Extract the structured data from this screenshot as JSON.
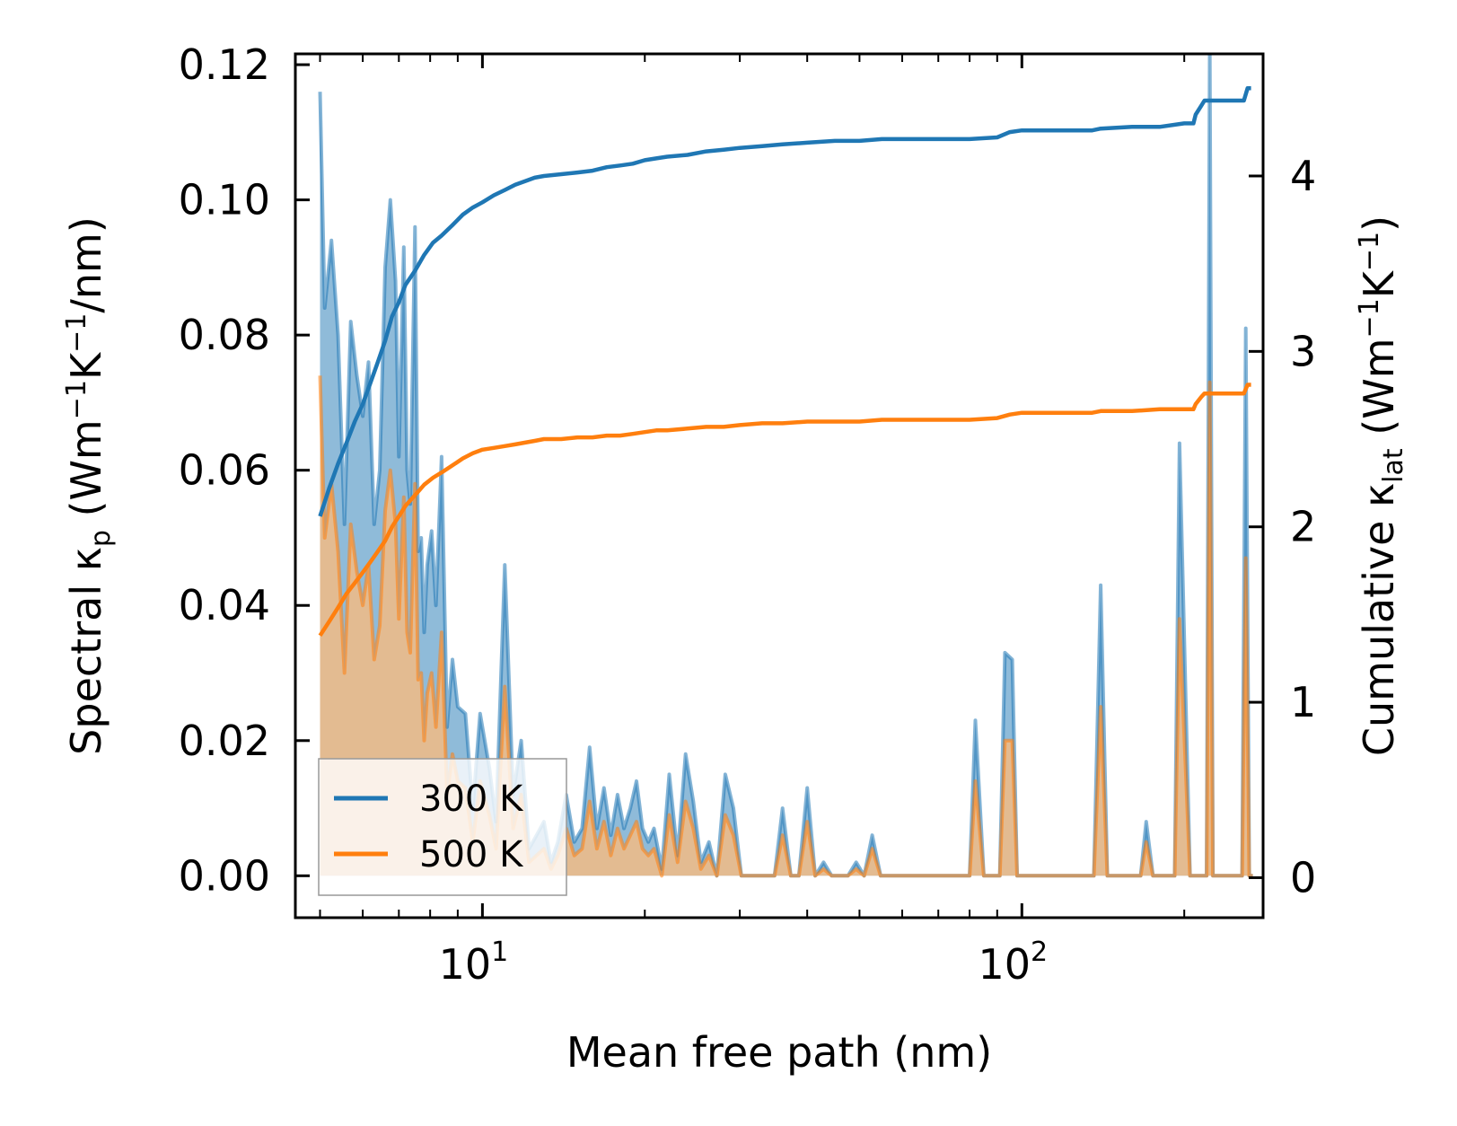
{
  "chart_data": {
    "type": "line",
    "title": "",
    "xlabel": "Mean free path (nm)",
    "ylabel_left": {
      "prefix": "Spectral κ",
      "sub": "p",
      "unit_open": " (Wm",
      "sup1": "−1",
      "unit_mid": "K",
      "sup2": "−1",
      "unit_close": "/nm)"
    },
    "ylabel_right": {
      "prefix": "Cumulative κ",
      "sub": "lat",
      "unit_open": " (Wm",
      "sup1": "−1",
      "unit_mid": "K",
      "sup2": "−1",
      "unit_close": ")"
    },
    "xscale": "log",
    "xlim": [
      4.5,
      280
    ],
    "ylim_left": [
      -0.0062,
      0.1216
    ],
    "ylim_right": [
      -0.228,
      4.696
    ],
    "xticks": [
      {
        "value": 10,
        "base": "10",
        "exp": "1"
      },
      {
        "value": 100,
        "base": "10",
        "exp": "2"
      }
    ],
    "yticks_left": [
      "0.00",
      "0.02",
      "0.04",
      "0.06",
      "0.08",
      "0.10",
      "0.12"
    ],
    "yticks_left_values": [
      0,
      0.02,
      0.04,
      0.06,
      0.08,
      0.1,
      0.12
    ],
    "yticks_right": [
      "0",
      "1",
      "2",
      "3",
      "4"
    ],
    "yticks_right_values": [
      0,
      1,
      2,
      3,
      4
    ],
    "legend": {
      "position": "lower-left",
      "entries": [
        "300 K",
        "500 K"
      ]
    },
    "colors": {
      "s300": "#1f77b4",
      "s500": "#ff7f0e",
      "fill300": "#1f77b4",
      "fill500": "#ffbb78"
    },
    "series": [
      {
        "name": "300 K",
        "spectral": {
          "x": [
            5.0,
            5.1,
            5.25,
            5.4,
            5.55,
            5.7,
            5.85,
            6.0,
            6.15,
            6.3,
            6.45,
            6.6,
            6.75,
            6.9,
            7.0,
            7.15,
            7.25,
            7.35,
            7.5,
            7.6,
            7.7,
            7.8,
            7.9,
            8.05,
            8.2,
            8.4,
            8.6,
            8.8,
            9.0,
            9.3,
            9.6,
            9.9,
            10.3,
            10.6,
            11.0,
            11.4,
            11.8,
            12.2,
            12.6,
            13.0,
            13.4,
            13.8,
            14.3,
            14.8,
            15.3,
            15.8,
            16.3,
            16.8,
            17.3,
            17.8,
            18.3,
            18.8,
            19.3,
            19.8,
            20.3,
            20.8,
            21.5,
            22.2,
            23.0,
            23.8,
            24.6,
            25.4,
            26.3,
            27.2,
            28.2,
            29.2,
            30.2,
            31.3,
            32.4,
            33.6,
            34.8,
            36.0,
            37.3,
            38.6,
            40.0,
            41.4,
            42.9,
            44.4,
            46.0,
            47.6,
            49.3,
            51.0,
            52.8,
            54.7,
            56.6,
            60.0,
            65.0,
            70.0,
            75.0,
            78.0,
            80.0,
            82.0,
            85.0,
            88.0,
            91.0,
            93.0,
            96.0,
            98.0,
            102.0,
            110.0,
            120.0,
            130.0,
            136.0,
            140.0,
            144.0,
            150.0,
            160.0,
            166.0,
            170.0,
            175.0,
            182.0,
            187.0,
            192.0,
            196.0,
            205.0,
            215.0,
            220.0,
            223.0,
            226.0,
            230.0,
            240.0,
            250.0,
            256.0,
            260.0,
            264.0,
            268.0
          ],
          "y": [
            0.116,
            0.084,
            0.094,
            0.08,
            0.052,
            0.082,
            0.074,
            0.068,
            0.076,
            0.052,
            0.06,
            0.09,
            0.1,
            0.088,
            0.062,
            0.093,
            0.06,
            0.055,
            0.096,
            0.048,
            0.05,
            0.036,
            0.046,
            0.051,
            0.04,
            0.062,
            0.022,
            0.032,
            0.025,
            0.024,
            0.01,
            0.024,
            0.016,
            0.008,
            0.046,
            0.012,
            0.02,
            0.004,
            0.006,
            0.008,
            0.002,
            0.005,
            0.012,
            0.005,
            0.007,
            0.019,
            0.007,
            0.013,
            0.006,
            0.012,
            0.007,
            0.01,
            0.014,
            0.007,
            0.005,
            0.007,
            0.001,
            0.015,
            0.003,
            0.018,
            0.011,
            0.002,
            0.005,
            0.0,
            0.015,
            0.01,
            0.0,
            0.0,
            0.0,
            0.0,
            0.0,
            0.01,
            0.0,
            0.0,
            0.013,
            0.0,
            0.002,
            0.0,
            0.0,
            0.0,
            0.002,
            0.0,
            0.006,
            0.0,
            0.0,
            0.0,
            0.0,
            0.0,
            0.0,
            0.0,
            0.0,
            0.023,
            0.0,
            0.0,
            0.0,
            0.033,
            0.032,
            0.0,
            0.0,
            0.0,
            0.0,
            0.0,
            0.0,
            0.043,
            0.0,
            0.0,
            0.0,
            0.0,
            0.008,
            0.0,
            0.0,
            0.0,
            0.0,
            0.064,
            0.0,
            0.0,
            0.0,
            0.124,
            0.0,
            0.0,
            0.0,
            0.0,
            0.0,
            0.081,
            0.0,
            0.0
          ]
        },
        "cumulative": {
          "x": [
            5.0,
            5.2,
            5.4,
            5.6,
            5.8,
            6.0,
            6.2,
            6.4,
            6.6,
            6.8,
            7.0,
            7.2,
            7.5,
            7.8,
            8.1,
            8.4,
            8.8,
            9.2,
            9.6,
            10.0,
            10.5,
            11.0,
            11.5,
            12.0,
            12.5,
            13.0,
            14.0,
            15.0,
            16.0,
            17.0,
            18.0,
            19.0,
            20.0,
            21.0,
            22.0,
            24.0,
            26.0,
            28.0,
            30.0,
            33.0,
            36.0,
            40.0,
            45.0,
            50.0,
            55.0,
            60.0,
            70.0,
            80.0,
            90.0,
            95.0,
            100.0,
            120.0,
            135.0,
            140.0,
            160.0,
            180.0,
            200.0,
            208.0,
            210.0,
            215.0,
            218.0,
            220.0,
            230.0,
            250.0,
            255.0,
            258.0,
            262.0,
            266.0
          ],
          "y": [
            2.06,
            2.22,
            2.36,
            2.48,
            2.6,
            2.7,
            2.82,
            2.94,
            3.06,
            3.2,
            3.28,
            3.38,
            3.46,
            3.55,
            3.62,
            3.66,
            3.72,
            3.78,
            3.82,
            3.85,
            3.89,
            3.92,
            3.95,
            3.97,
            3.99,
            4.0,
            4.01,
            4.02,
            4.03,
            4.05,
            4.06,
            4.07,
            4.09,
            4.1,
            4.11,
            4.12,
            4.14,
            4.15,
            4.16,
            4.17,
            4.18,
            4.19,
            4.2,
            4.2,
            4.21,
            4.21,
            4.21,
            4.21,
            4.22,
            4.25,
            4.26,
            4.26,
            4.26,
            4.27,
            4.28,
            4.28,
            4.3,
            4.3,
            4.35,
            4.4,
            4.43,
            4.43,
            4.43,
            4.43,
            4.43,
            4.43,
            4.5,
            4.5
          ]
        }
      },
      {
        "name": "500 K",
        "spectral": {
          "x": [
            5.0,
            5.1,
            5.25,
            5.4,
            5.55,
            5.7,
            5.85,
            6.0,
            6.15,
            6.3,
            6.45,
            6.6,
            6.75,
            6.9,
            7.0,
            7.15,
            7.25,
            7.35,
            7.5,
            7.6,
            7.7,
            7.8,
            7.9,
            8.05,
            8.2,
            8.4,
            8.6,
            8.8,
            9.0,
            9.3,
            9.6,
            9.9,
            10.3,
            10.6,
            11.0,
            11.4,
            11.8,
            12.2,
            12.6,
            13.0,
            13.4,
            13.8,
            14.3,
            14.8,
            15.3,
            15.8,
            16.3,
            16.8,
            17.3,
            17.8,
            18.3,
            18.8,
            19.3,
            19.8,
            20.3,
            20.8,
            21.5,
            22.2,
            23.0,
            23.8,
            24.6,
            25.4,
            26.3,
            27.2,
            28.2,
            29.2,
            30.2,
            31.3,
            32.4,
            33.6,
            34.8,
            36.0,
            37.3,
            38.6,
            40.0,
            41.4,
            42.9,
            44.4,
            46.0,
            47.6,
            49.3,
            51.0,
            52.8,
            54.7,
            56.6,
            60.0,
            65.0,
            70.0,
            75.0,
            78.0,
            80.0,
            82.0,
            85.0,
            88.0,
            91.0,
            93.0,
            96.0,
            98.0,
            102.0,
            110.0,
            120.0,
            130.0,
            136.0,
            140.0,
            144.0,
            150.0,
            160.0,
            166.0,
            170.0,
            175.0,
            182.0,
            187.0,
            192.0,
            196.0,
            205.0,
            215.0,
            220.0,
            223.0,
            226.0,
            230.0,
            240.0,
            250.0,
            256.0,
            260.0,
            264.0,
            268.0
          ],
          "y": [
            0.074,
            0.05,
            0.058,
            0.048,
            0.03,
            0.052,
            0.045,
            0.04,
            0.046,
            0.032,
            0.037,
            0.054,
            0.06,
            0.052,
            0.038,
            0.056,
            0.036,
            0.033,
            0.058,
            0.029,
            0.03,
            0.02,
            0.027,
            0.03,
            0.022,
            0.036,
            0.012,
            0.018,
            0.014,
            0.013,
            0.005,
            0.014,
            0.009,
            0.004,
            0.028,
            0.007,
            0.012,
            0.002,
            0.003,
            0.004,
            0.001,
            0.003,
            0.007,
            0.003,
            0.004,
            0.011,
            0.004,
            0.008,
            0.003,
            0.007,
            0.004,
            0.006,
            0.008,
            0.004,
            0.003,
            0.004,
            0.0,
            0.009,
            0.002,
            0.011,
            0.007,
            0.001,
            0.003,
            0.0,
            0.009,
            0.006,
            0.0,
            0.0,
            0.0,
            0.0,
            0.0,
            0.006,
            0.0,
            0.0,
            0.008,
            0.0,
            0.001,
            0.0,
            0.0,
            0.0,
            0.001,
            0.0,
            0.004,
            0.0,
            0.0,
            0.0,
            0.0,
            0.0,
            0.0,
            0.0,
            0.0,
            0.014,
            0.0,
            0.0,
            0.0,
            0.02,
            0.02,
            0.0,
            0.0,
            0.0,
            0.0,
            0.0,
            0.0,
            0.025,
            0.0,
            0.0,
            0.0,
            0.0,
            0.005,
            0.0,
            0.0,
            0.0,
            0.0,
            0.038,
            0.0,
            0.0,
            0.0,
            0.073,
            0.0,
            0.0,
            0.0,
            0.0,
            0.0,
            0.047,
            0.0,
            0.0
          ]
        },
        "cumulative": {
          "x": [
            5.0,
            5.2,
            5.4,
            5.6,
            5.8,
            6.0,
            6.2,
            6.4,
            6.6,
            6.8,
            7.0,
            7.2,
            7.5,
            7.8,
            8.1,
            8.4,
            8.8,
            9.2,
            9.6,
            10.0,
            10.5,
            11.0,
            11.5,
            12.0,
            12.5,
            13.0,
            14.0,
            15.0,
            16.0,
            17.0,
            18.0,
            19.0,
            20.0,
            21.0,
            22.0,
            24.0,
            26.0,
            28.0,
            30.0,
            33.0,
            36.0,
            40.0,
            45.0,
            50.0,
            55.0,
            60.0,
            70.0,
            80.0,
            90.0,
            95.0,
            100.0,
            120.0,
            135.0,
            140.0,
            160.0,
            180.0,
            200.0,
            208.0,
            210.0,
            215.0,
            218.0,
            220.0,
            230.0,
            250.0,
            255.0,
            258.0,
            262.0,
            266.0
          ],
          "y": [
            1.38,
            1.46,
            1.54,
            1.62,
            1.68,
            1.74,
            1.8,
            1.86,
            1.92,
            2.0,
            2.06,
            2.12,
            2.18,
            2.24,
            2.28,
            2.31,
            2.35,
            2.39,
            2.42,
            2.44,
            2.45,
            2.46,
            2.47,
            2.48,
            2.49,
            2.5,
            2.5,
            2.51,
            2.51,
            2.52,
            2.52,
            2.53,
            2.54,
            2.55,
            2.55,
            2.56,
            2.57,
            2.57,
            2.58,
            2.59,
            2.59,
            2.6,
            2.6,
            2.6,
            2.61,
            2.61,
            2.61,
            2.61,
            2.62,
            2.64,
            2.65,
            2.65,
            2.65,
            2.66,
            2.66,
            2.67,
            2.67,
            2.67,
            2.7,
            2.74,
            2.76,
            2.76,
            2.76,
            2.76,
            2.76,
            2.76,
            2.81,
            2.81
          ]
        }
      }
    ]
  }
}
